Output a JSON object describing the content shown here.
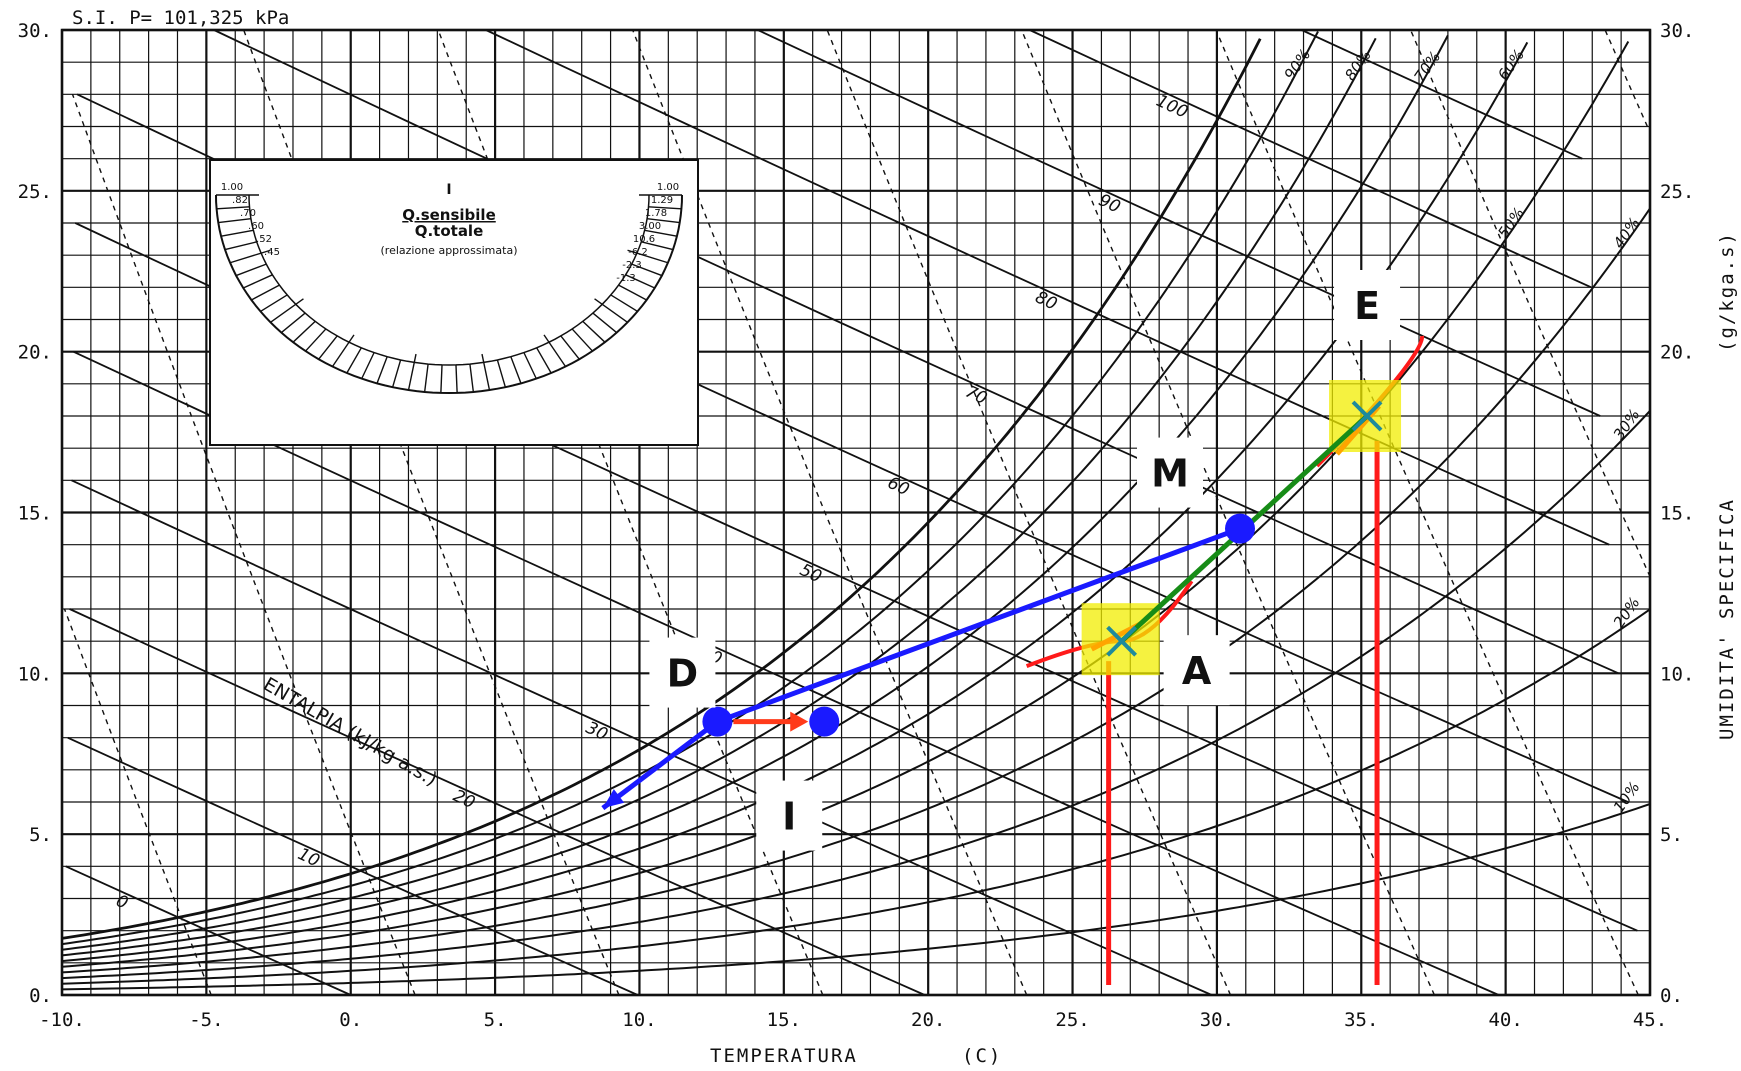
{
  "chart_data": {
    "type": "scatter",
    "header": "S.I. P= 101,325 kPa",
    "xlabel": "TEMPERATURA",
    "xlabel_unit": "(C)",
    "ylabel": "UMIDITA' SPECIFICA",
    "ylabel_unit": "(g/kga.s)",
    "xlim": [
      -10,
      45
    ],
    "ylim": [
      0,
      30
    ],
    "x_ticks": [
      -10,
      -5,
      0,
      5,
      10,
      15,
      20,
      25,
      30,
      35,
      40,
      45
    ],
    "x_tick_labels": [
      "-10.",
      "-5.",
      "0.",
      "5.",
      "10.",
      "15.",
      "20.",
      "25.",
      "30.",
      "35.",
      "40.",
      "45."
    ],
    "y_ticks": [
      0,
      5,
      10,
      15,
      20,
      25,
      30
    ],
    "y_tick_labels": [
      "0.",
      "5.",
      "10.",
      "15.",
      "20.",
      "25.",
      "30."
    ],
    "enthalpy_label": "ENTALPIA (kJ/kg a.s.)",
    "enthalpy_values": [
      "0",
      "10",
      "20",
      "30",
      "40",
      "50",
      "60",
      "70",
      "80",
      "90",
      "100"
    ],
    "rh_labels": [
      "10%",
      "20%",
      "30%",
      "40%",
      "50%",
      "60%",
      "70%",
      "80%",
      "90%"
    ],
    "protractor": {
      "numerator": "Q.sensibile",
      "denominator": "Q.totale",
      "note": "(relazione approssimata)",
      "top": "I",
      "left_scale": [
        "1.00",
        ".82",
        ".70",
        ".60",
        ".52",
        ".45"
      ],
      "right_scale": [
        "1.00",
        "1.29",
        "1.78",
        "3.00",
        "10.6",
        "-6.2",
        "-2.3",
        "-1.3"
      ]
    },
    "points": [
      {
        "label": "A",
        "x": 26.7,
        "y": 11.0
      },
      {
        "label": "E",
        "x": 35.2,
        "y": 18.0
      },
      {
        "label": "M",
        "x": 30.8,
        "y": 14.5
      },
      {
        "label": "D",
        "x": 12.7,
        "y": 8.5
      },
      {
        "label": "I",
        "x": 16.4,
        "y": 8.5
      }
    ],
    "process_lines": [
      {
        "from": "A",
        "to": "E"
      },
      {
        "from": "M",
        "to": "D"
      },
      {
        "from": "D",
        "to": "I"
      }
    ]
  }
}
